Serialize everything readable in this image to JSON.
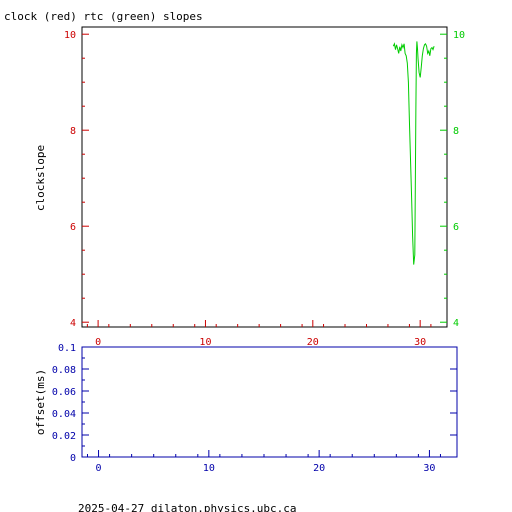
{
  "footer": "2025-04-27  dilaton.physics.ubc.ca",
  "colors": {
    "red": "#cc0000",
    "green": "#00cc00",
    "blue": "#0000aa",
    "black": "#000000"
  },
  "chart_data": [
    {
      "type": "line",
      "title": "clock (red) rtc (green) slopes",
      "ylabel": "clockslope",
      "xlabel": "",
      "xlim": [
        -1.5,
        32.5
      ],
      "ylim": [
        3.9,
        10.15
      ],
      "grid": false,
      "x_ticks": [
        0,
        10,
        20,
        30
      ],
      "y_ticks_left": [
        4,
        6,
        8,
        10
      ],
      "y_ticks_right": [
        4,
        6,
        8,
        10
      ],
      "series": [
        {
          "color": "green",
          "x": [
            27.5,
            27.6,
            27.7,
            27.8,
            27.9,
            28.0,
            28.1,
            28.2,
            28.3,
            28.4,
            28.5,
            28.6,
            28.7,
            28.8,
            28.9,
            29.0,
            29.1,
            29.2,
            29.3,
            29.4,
            29.5,
            29.55,
            29.6,
            29.65,
            29.7,
            29.75,
            29.8,
            29.9,
            30.0,
            30.1,
            30.2,
            30.3,
            30.4,
            30.5,
            30.6,
            30.7,
            30.8,
            30.9,
            31.0,
            31.1,
            31.2,
            31.3
          ],
          "y": [
            9.75,
            9.8,
            9.68,
            9.78,
            9.7,
            9.6,
            9.74,
            9.65,
            9.78,
            9.72,
            9.8,
            9.6,
            9.55,
            9.4,
            9.0,
            8.2,
            7.4,
            6.6,
            5.8,
            5.2,
            5.4,
            6.8,
            8.5,
            9.6,
            9.85,
            9.7,
            9.5,
            9.2,
            9.1,
            9.3,
            9.55,
            9.7,
            9.78,
            9.8,
            9.75,
            9.6,
            9.65,
            9.55,
            9.7,
            9.72,
            9.68,
            9.75
          ]
        }
      ]
    },
    {
      "type": "line",
      "title": "",
      "ylabel": "offset(ms)",
      "xlabel": "",
      "xlim": [
        -1.5,
        32.5
      ],
      "ylim": [
        0,
        0.1
      ],
      "grid": false,
      "x_ticks": [
        0,
        10,
        20,
        30
      ],
      "y_ticks": [
        0,
        0.02,
        0.04,
        0.06,
        0.08,
        0.1
      ],
      "y_tick_labels": [
        "0",
        "0.02",
        "0.04",
        "0.06",
        "0.08",
        "0.1"
      ],
      "series": []
    }
  ]
}
